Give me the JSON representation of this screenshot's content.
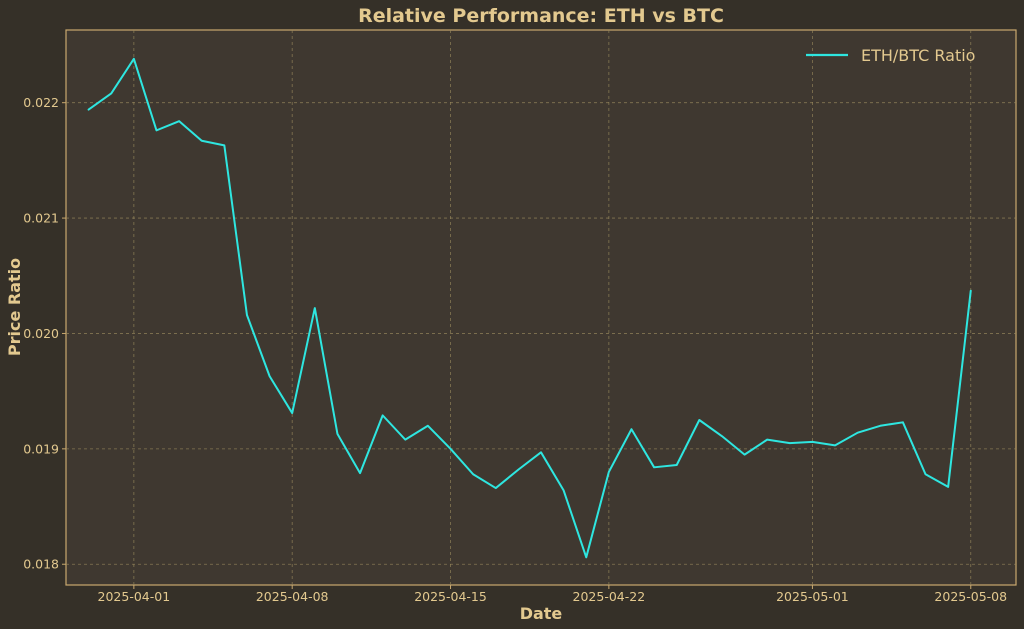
{
  "chart_data": {
    "type": "line",
    "title": "Relative Performance: ETH vs BTC",
    "xlabel": "Date",
    "ylabel": "Price Ratio",
    "grid": true,
    "legend_position": "top-right",
    "xlim": [
      "2025-03-29",
      "2025-05-10"
    ],
    "ylim": [
      0.01782,
      0.02263
    ],
    "x_ticks": [
      "2025-04-01",
      "2025-04-08",
      "2025-04-15",
      "2025-04-22",
      "2025-05-01",
      "2025-05-08"
    ],
    "y_ticks": [
      0.018,
      0.019,
      0.02,
      0.021,
      0.022
    ],
    "y_tick_labels": [
      "0.018",
      "0.019",
      "0.020",
      "0.021",
      "0.022"
    ],
    "series": [
      {
        "name": "ETH/BTC Ratio",
        "color": "#2ee6e0",
        "x": [
          "2025-03-30",
          "2025-03-31",
          "2025-04-01",
          "2025-04-02",
          "2025-04-03",
          "2025-04-04",
          "2025-04-05",
          "2025-04-06",
          "2025-04-07",
          "2025-04-08",
          "2025-04-09",
          "2025-04-10",
          "2025-04-11",
          "2025-04-12",
          "2025-04-13",
          "2025-04-14",
          "2025-04-15",
          "2025-04-16",
          "2025-04-17",
          "2025-04-18",
          "2025-04-19",
          "2025-04-20",
          "2025-04-21",
          "2025-04-22",
          "2025-04-23",
          "2025-04-24",
          "2025-04-25",
          "2025-04-26",
          "2025-04-27",
          "2025-04-28",
          "2025-04-29",
          "2025-04-30",
          "2025-05-01",
          "2025-05-02",
          "2025-05-03",
          "2025-05-04",
          "2025-05-05",
          "2025-05-06",
          "2025-05-07",
          "2025-05-08"
        ],
        "values": [
          0.02194,
          0.02208,
          0.02238,
          0.02176,
          0.02184,
          0.02167,
          0.02163,
          0.02016,
          0.01963,
          0.01931,
          0.02022,
          0.01913,
          0.01879,
          0.01929,
          0.01908,
          0.0192,
          0.019,
          0.01878,
          0.01866,
          0.01882,
          0.01897,
          0.01864,
          0.01806,
          0.0188,
          0.01917,
          0.01884,
          0.01886,
          0.01925,
          0.01911,
          0.01895,
          0.01908,
          0.01905,
          0.01906,
          0.01903,
          0.01914,
          0.0192,
          0.01923,
          0.01878,
          0.01867,
          0.02037
        ]
      }
    ]
  }
}
